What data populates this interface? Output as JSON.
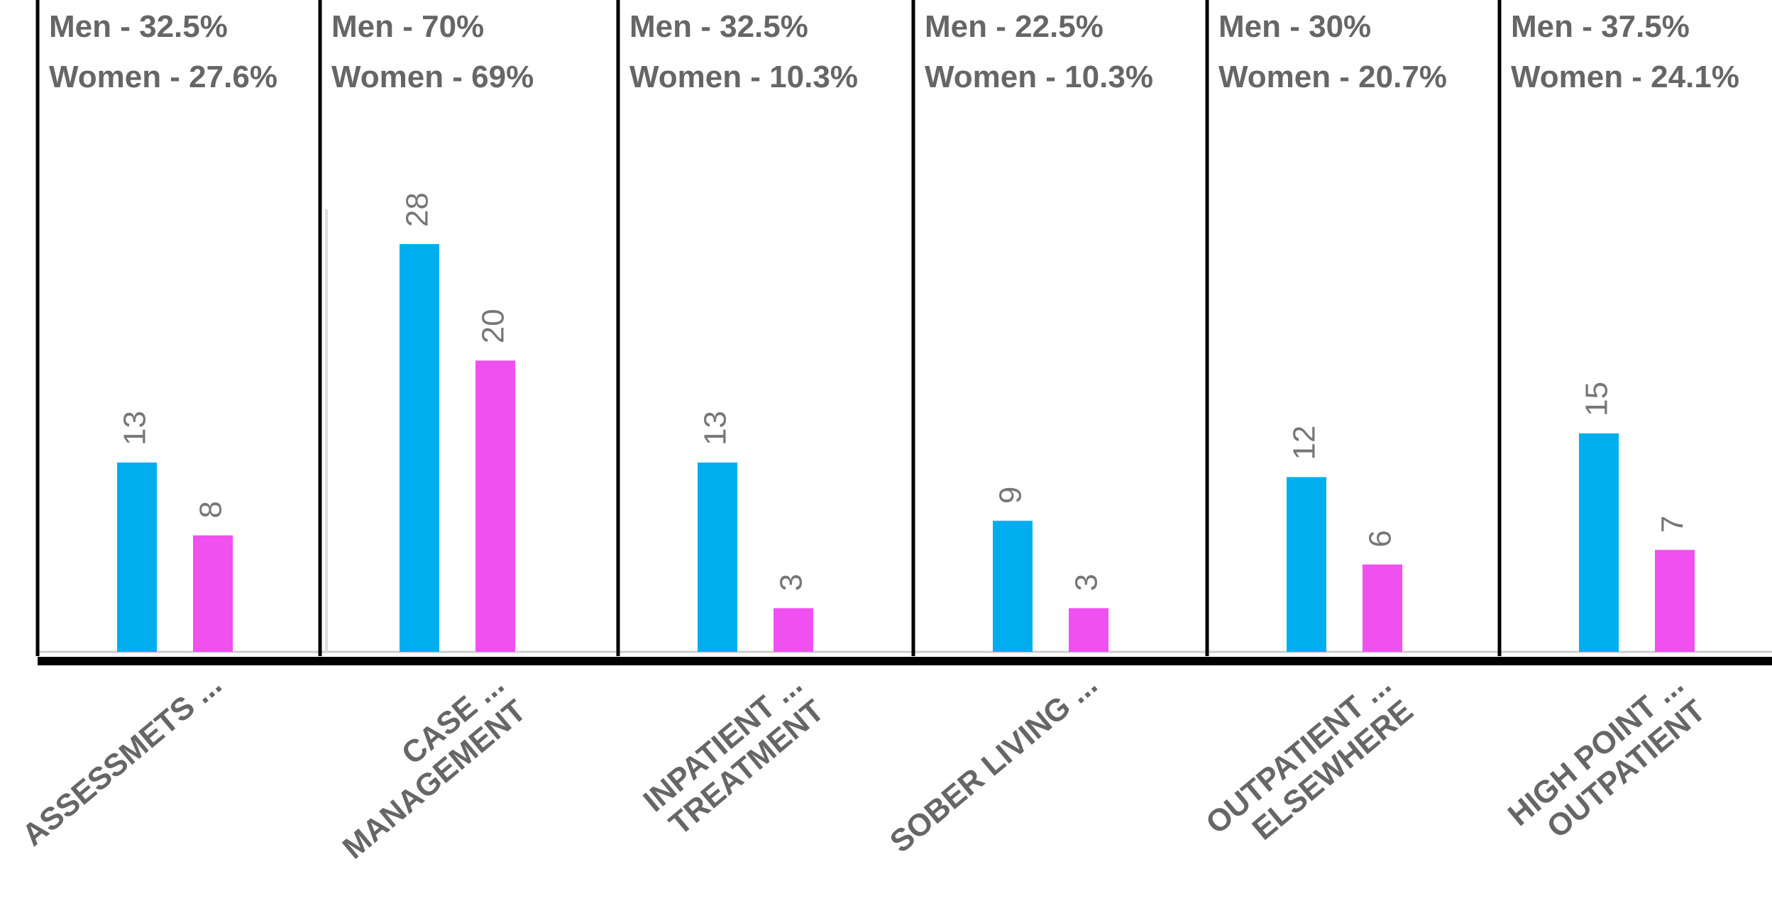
{
  "chart_data": {
    "type": "bar",
    "categories": [
      "ASSESSMETS ...",
      "CASE ...\nMANAGEMENT",
      "INPATIENT ...\nTREATMENT",
      "SOBER LIVING ...",
      "OUTPATIENT ...\nELSEWHERE",
      "HIGH POINT ...\nOUTPATIENT"
    ],
    "series": [
      {
        "color": "#00aeef",
        "values": [
          13,
          28,
          13,
          9,
          12,
          15
        ]
      },
      {
        "color": "#f050f0",
        "values": [
          8,
          20,
          3,
          3,
          6,
          7
        ]
      }
    ],
    "annotations": [
      [
        "Men - 32.5%",
        "Women - 27.6%"
      ],
      [
        "Men - 70%",
        "Women - 69%"
      ],
      [
        "Men - 32.5%",
        "Women - 10.3%"
      ],
      [
        "Men - 22.5%",
        "Women - 10.3%"
      ],
      [
        "Men - 30%",
        "Women - 20.7%"
      ],
      [
        "Men - 37.5%",
        "Women - 24.1%"
      ]
    ],
    "ylim": [
      0,
      30
    ]
  }
}
